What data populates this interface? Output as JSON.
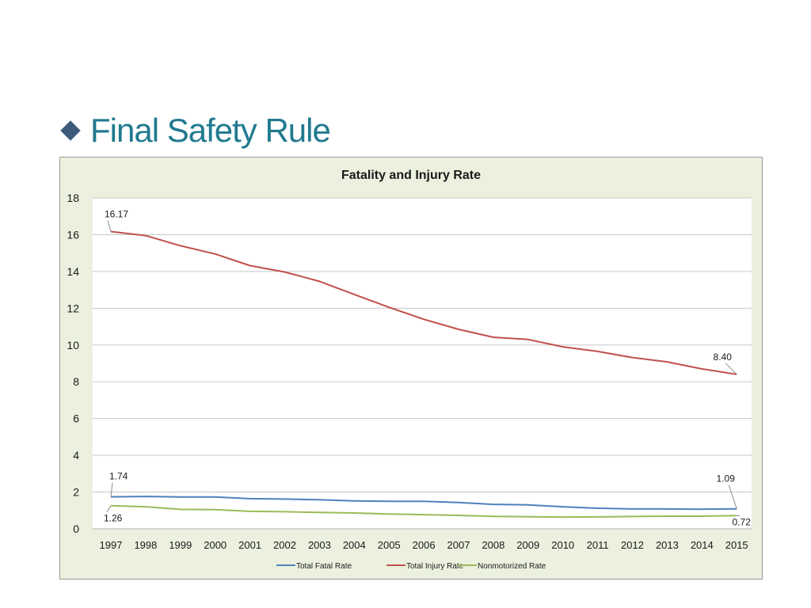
{
  "slide": {
    "title": "Final Safety Rule"
  },
  "colors": {
    "title": "#217a8f",
    "bullet": "#3e5a7a",
    "chart_bg": "#ebf1de",
    "plot_bg": "#ffffff",
    "grid": "#c8c8c8",
    "fatal": "#4f81bd",
    "injury": "#c0504d",
    "nonmotorized": "#9bbb59"
  },
  "chart_data": {
    "type": "line",
    "title": "Fatality and Injury Rate",
    "xlabel": "",
    "ylabel": "",
    "ylim": [
      0,
      18
    ],
    "yticks": [
      0,
      2,
      4,
      6,
      8,
      10,
      12,
      14,
      16,
      18
    ],
    "grid": true,
    "legend_position": "bottom",
    "categories": [
      "1997",
      "1998",
      "1999",
      "2000",
      "2001",
      "2002",
      "2003",
      "2004",
      "2005",
      "2006",
      "2007",
      "2008",
      "2009",
      "2010",
      "2011",
      "2012",
      "2013",
      "2014",
      "2015"
    ],
    "series": [
      {
        "name": "Total Fatal Rate",
        "color": "#4f81bd",
        "values": [
          1.74,
          1.76,
          1.73,
          1.73,
          1.64,
          1.62,
          1.58,
          1.52,
          1.5,
          1.5,
          1.43,
          1.33,
          1.3,
          1.2,
          1.12,
          1.08,
          1.08,
          1.07,
          1.09
        ]
      },
      {
        "name": "Total Injury Rate",
        "color": "#c0504d",
        "values": [
          16.17,
          15.95,
          15.4,
          14.95,
          14.32,
          13.97,
          13.46,
          12.75,
          12.05,
          11.4,
          10.85,
          10.42,
          10.3,
          9.9,
          9.65,
          9.32,
          9.08,
          8.7,
          8.4
        ]
      },
      {
        "name": "Nonmotorized Rate",
        "color": "#9bbb59",
        "values": [
          1.26,
          1.2,
          1.06,
          1.04,
          0.95,
          0.93,
          0.89,
          0.86,
          0.81,
          0.77,
          0.73,
          0.68,
          0.66,
          0.64,
          0.65,
          0.67,
          0.69,
          0.69,
          0.72
        ]
      }
    ],
    "annotations": [
      {
        "series": "Total Injury Rate",
        "index": 0,
        "label": "16.17"
      },
      {
        "series": "Total Injury Rate",
        "index": 18,
        "label": "8.40"
      },
      {
        "series": "Total Fatal Rate",
        "index": 0,
        "label": "1.74"
      },
      {
        "series": "Total Fatal Rate",
        "index": 18,
        "label": "1.09"
      },
      {
        "series": "Nonmotorized Rate",
        "index": 0,
        "label": "1.26"
      },
      {
        "series": "Nonmotorized Rate",
        "index": 18,
        "label": "0.72"
      }
    ]
  }
}
